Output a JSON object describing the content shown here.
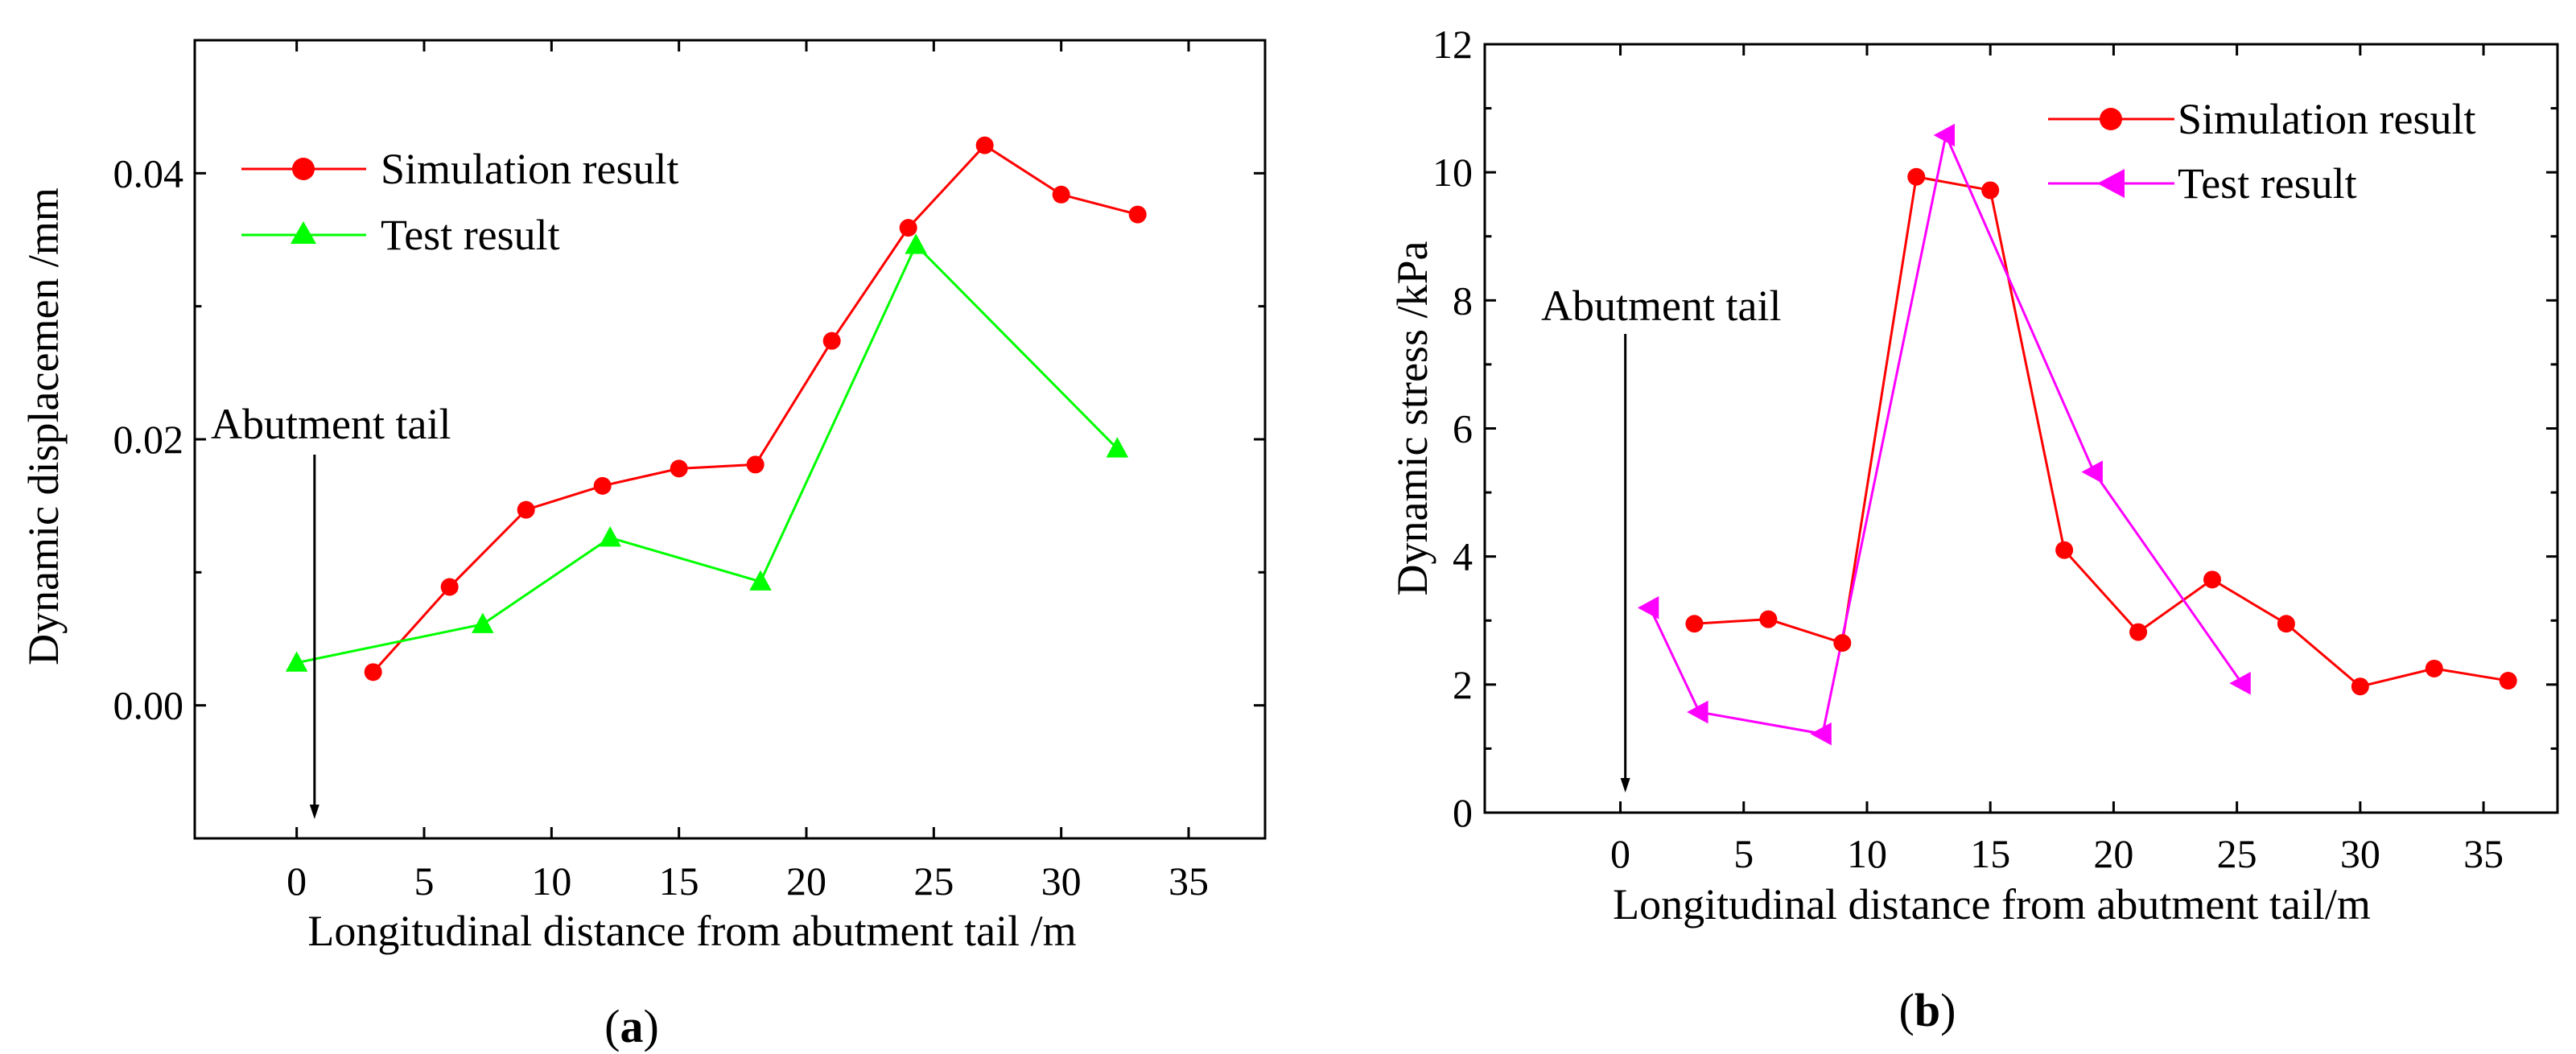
{
  "figure": {
    "panel_a_label": "a",
    "panel_b_label": "b"
  },
  "chart_data": [
    {
      "type": "line",
      "panel": "a",
      "xlabel": "Longitudinal distance from abutment tail /m",
      "ylabel": "Dynamic displacemen /mm",
      "xlim": [
        -4,
        38
      ],
      "ylim": [
        -0.01,
        0.05
      ],
      "xticks": [
        0,
        5,
        10,
        15,
        20,
        25,
        30,
        35
      ],
      "xtick_labels": [
        "0",
        "5",
        "10",
        "15",
        "20",
        "25",
        "30",
        "35"
      ],
      "yticks": [
        0.0,
        0.02,
        0.04
      ],
      "ytick_labels": [
        "0.00",
        "0.02",
        "0.04"
      ],
      "y_minor_ticks": [
        0.01,
        0.03
      ],
      "legend_position": "top-left",
      "annotation": {
        "text": "Abutment tail",
        "x": 0.7
      },
      "series": [
        {
          "name": "Simulation result",
          "color": "#ff0000",
          "marker": "circle",
          "x": [
            3,
            6,
            9,
            12,
            15,
            18,
            21,
            24,
            27,
            30,
            33
          ],
          "y": [
            0.0025,
            0.0089,
            0.0147,
            0.0165,
            0.0178,
            0.0181,
            0.0274,
            0.0359,
            0.0421,
            0.0384,
            0.0369
          ]
        },
        {
          "name": "Test result",
          "color": "#00ff00",
          "marker": "triangle-up",
          "x": [
            0,
            7.3,
            12.3,
            18.2,
            24.3,
            32.2
          ],
          "y": [
            0.0032,
            0.0061,
            0.0126,
            0.0093,
            0.0346,
            0.0193
          ]
        }
      ]
    },
    {
      "type": "line",
      "panel": "b",
      "xlabel": "Longitudinal distance from abutment tail/m",
      "ylabel": "Dynamic stress /kPa",
      "xlim": [
        -5.5,
        38
      ],
      "ylim": [
        0,
        12
      ],
      "xticks": [
        0,
        5,
        10,
        15,
        20,
        25,
        30,
        35
      ],
      "xtick_labels": [
        "0",
        "5",
        "10",
        "15",
        "20",
        "25",
        "30",
        "35"
      ],
      "yticks": [
        0,
        2,
        4,
        6,
        8,
        10,
        12
      ],
      "ytick_labels": [
        "0",
        "2",
        "4",
        "6",
        "8",
        "10",
        "12"
      ],
      "y_minor_ticks": [
        1,
        3,
        5,
        7,
        9,
        11
      ],
      "legend_position": "top-right",
      "annotation": {
        "text": "Abutment tail",
        "x": 0.2
      },
      "series": [
        {
          "name": "Simulation result",
          "color": "#ff0000",
          "marker": "circle",
          "x": [
            3,
            6,
            9,
            12,
            15,
            18,
            21,
            24,
            27,
            30,
            33,
            36
          ],
          "y": [
            2.95,
            3.02,
            2.65,
            9.93,
            9.72,
            4.1,
            2.82,
            3.64,
            2.95,
            1.97,
            2.25,
            2.06
          ]
        },
        {
          "name": "Test result",
          "color": "#ff00ff",
          "marker": "triangle-left",
          "x": [
            1.2,
            3.2,
            8.2,
            13.2,
            19.2,
            25.2
          ],
          "y": [
            3.2,
            1.57,
            1.23,
            10.58,
            5.32,
            2.02
          ]
        }
      ]
    }
  ]
}
